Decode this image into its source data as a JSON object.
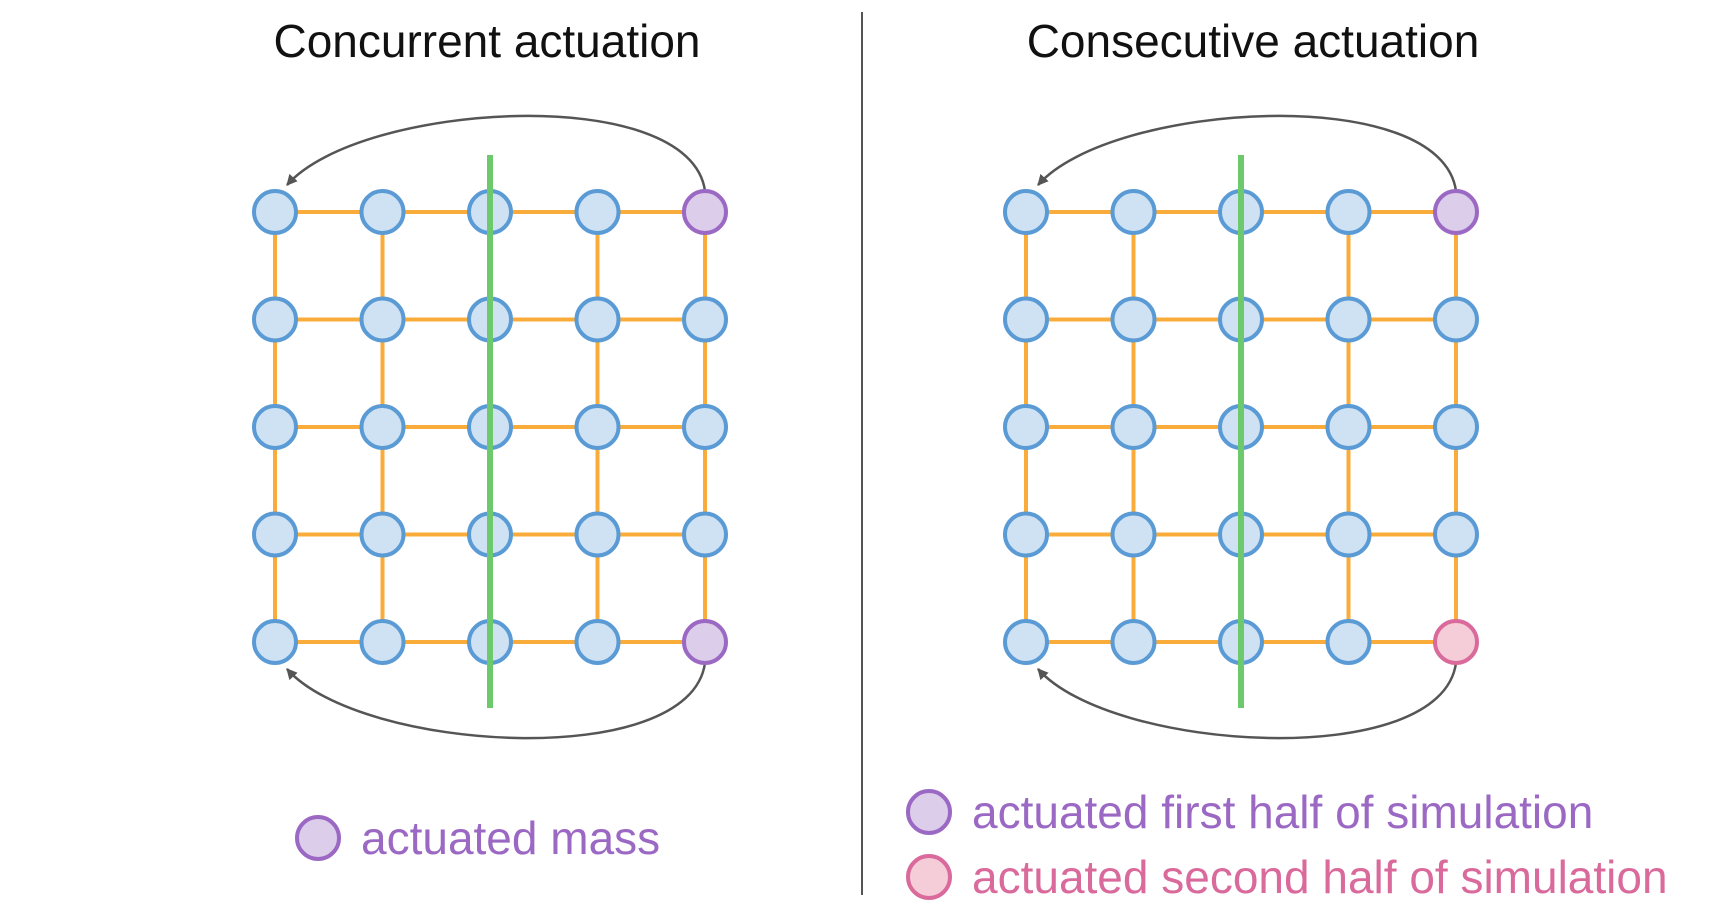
{
  "panels": [
    {
      "id": "concurrent",
      "title": "Concurrent actuation",
      "actuated": {
        "top-right": "first",
        "bottom-right": "first"
      },
      "legend": [
        {
          "label": "actuated mass",
          "kind": "first"
        }
      ]
    },
    {
      "id": "consecutive",
      "title": "Consecutive actuation",
      "actuated": {
        "top-right": "first",
        "bottom-right": "second"
      },
      "legend": [
        {
          "label": "actuated first half of simulation",
          "kind": "first"
        },
        {
          "label": "actuated second half of simulation",
          "kind": "second"
        }
      ]
    }
  ],
  "grid": {
    "rows": 5,
    "cols": 5
  },
  "colors": {
    "node_fill": "#cfe2f3",
    "node_stroke": "#5b9bd5",
    "spring": "#f9ac3a",
    "axis": "#6cc96c",
    "arrow": "#555555",
    "divider": "#555555",
    "first_fill": "#dccdea",
    "first_stroke": "#9b69c4",
    "first_text": "#9b69c4",
    "second_fill": "#f4cdd8",
    "second_stroke": "#d96a9b",
    "second_text": "#d96a9b"
  }
}
